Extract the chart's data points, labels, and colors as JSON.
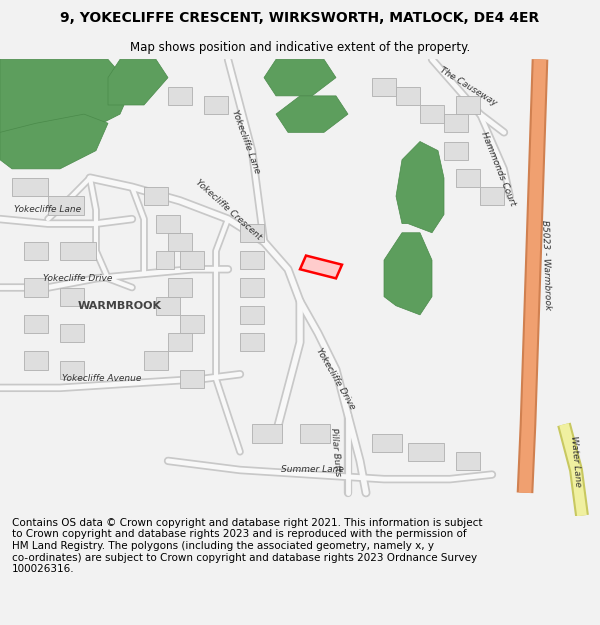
{
  "title": "9, YOKECLIFFE CRESCENT, WIRKSWORTH, MATLOCK, DE4 4ER",
  "subtitle": "Map shows position and indicative extent of the property.",
  "footer": "Contains OS data © Crown copyright and database right 2021. This information is subject\nto Crown copyright and database rights 2023 and is reproduced with the permission of\nHM Land Registry. The polygons (including the associated geometry, namely x, y\nco-ordinates) are subject to Crown copyright and database rights 2023 Ordnance Survey\n100026316.",
  "bg_color": "#f2f2f2",
  "map_bg": "#ffffff",
  "building_color": "#dedede",
  "building_outline": "#b0b0b0",
  "green_color": "#5d9e5d",
  "green_outline": "#4a8a4a",
  "highlight_fill": "#ffcccc",
  "highlight_edge": "#ff0000",
  "road_fill": "#f8f8f8",
  "road_outline": "#c8c8c8",
  "major_road_fill": "#f0a070",
  "major_road_outline": "#d08050",
  "yellow_road_fill": "#f0f0a0",
  "yellow_road_outline": "#c8c860",
  "label_color": "#333333",
  "title_fontsize": 10,
  "subtitle_fontsize": 8.5,
  "footer_fontsize": 7.5,
  "road_label_fontsize": 6.5,
  "area_label_fontsize": 8
}
